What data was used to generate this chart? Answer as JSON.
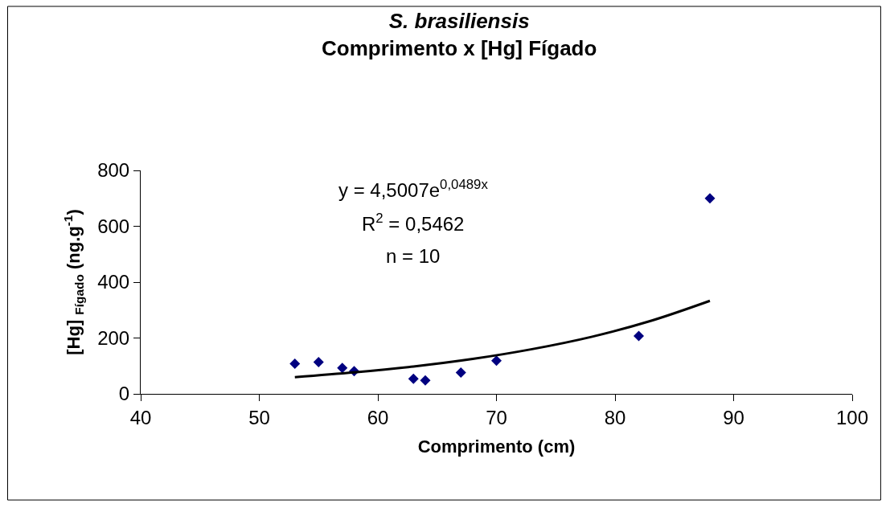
{
  "chart_data": {
    "type": "scatter",
    "title": "S. brasiliensis",
    "subtitle": "Comprimento x [Hg] Fígado",
    "xlabel": "Comprimento (cm)",
    "ylabel": "[Hg] $_{Fígado}$ (ng.g$^{-1}$)",
    "x": [
      53,
      55,
      57,
      58,
      63,
      64,
      67,
      70,
      82,
      88
    ],
    "series": [
      {
        "color": "#000080",
        "marker": "diamond",
        "values": [
          108,
          114,
          93,
          81,
          54,
          48,
          76,
          119,
          207,
          700
        ]
      },
      {
        "type": "line",
        "color": "#000000",
        "x": [
          53,
          58,
          63,
          68,
          73,
          78,
          83,
          88
        ],
        "values": [
          60,
          77,
          98,
          125,
          160,
          204,
          261,
          333
        ]
      }
    ],
    "annotations": [
      "y = 4,5007e$^{0,0489x}$",
      "R$^{2}$ = 0,5462",
      "n = 10"
    ],
    "xlim": [
      40,
      100
    ],
    "xticks": [
      40,
      50,
      60,
      70,
      80,
      90,
      100
    ],
    "ylim": [
      0,
      800
    ],
    "yticks": [
      0,
      200,
      400,
      600,
      800
    ]
  }
}
